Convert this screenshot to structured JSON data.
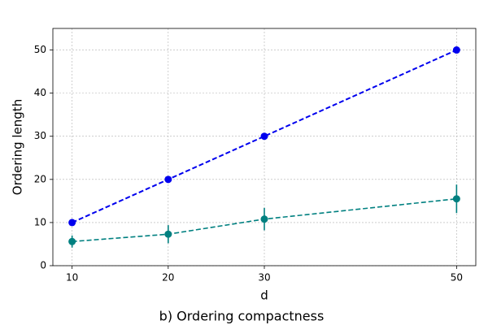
{
  "chart_data": {
    "type": "line",
    "title": "b) Ordering compactness",
    "x_label": "d",
    "y_label": "Ordering length",
    "x": [
      10,
      20,
      30,
      50
    ],
    "series": [
      {
        "color": "#0000ee",
        "values": [
          10,
          20,
          30,
          50
        ]
      },
      {
        "color": "#008080",
        "values": [
          5.6,
          7.3,
          10.8,
          15.5
        ],
        "errors": [
          1.4,
          2.1,
          2.6,
          3.3
        ]
      }
    ],
    "xlim": [
      8,
      52
    ],
    "ylim": [
      0,
      55
    ],
    "xticks": [
      10,
      20,
      30,
      50
    ],
    "yticks": [
      0,
      10,
      20,
      30,
      40,
      50
    ],
    "grid": true
  }
}
